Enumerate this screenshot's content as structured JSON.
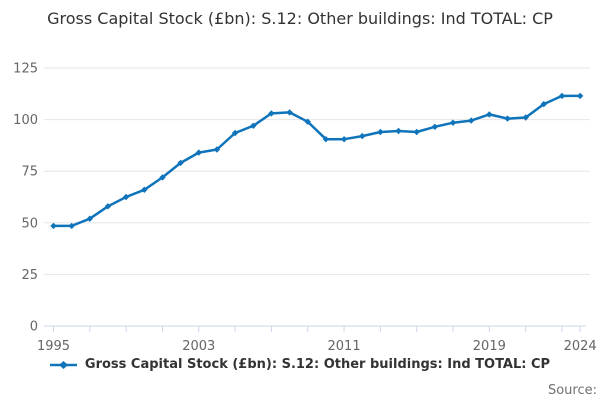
{
  "title": "Gross Capital Stock (£bn): S.12: Other buildings: Ind TOTAL: CP",
  "source_label": "Source:",
  "legend": {
    "label": "Gross Capital Stock (£bn): S.12: Other buildings: Ind TOTAL: CP"
  },
  "colors": {
    "line": "#1074bb",
    "grid": "#e6e6e6",
    "axis": "#ccd6eb",
    "tick_label": "#666666",
    "title_text": "#333333",
    "legend_text": "#333333",
    "source_text": "#707071"
  },
  "chart_data": {
    "type": "line",
    "title": "Gross Capital Stock (£bn): S.12: Other buildings: Ind TOTAL: CP",
    "xlabel": "",
    "ylabel": "",
    "x": [
      1995,
      1996,
      1997,
      1998,
      1999,
      2000,
      2001,
      2002,
      2003,
      2004,
      2005,
      2006,
      2007,
      2008,
      2009,
      2010,
      2011,
      2012,
      2013,
      2014,
      2015,
      2016,
      2017,
      2018,
      2019,
      2020,
      2021,
      2022,
      2023,
      2024
    ],
    "series": [
      {
        "name": "Gross Capital Stock (£bn): S.12: Other buildings: Ind TOTAL: CP",
        "values": [
          48.5,
          48.5,
          52,
          58,
          62.5,
          66,
          72,
          79,
          84,
          85.5,
          93.5,
          97,
          103,
          103.5,
          99,
          90.5,
          90.5,
          92,
          94,
          94.5,
          94,
          96.5,
          98.5,
          99.5,
          102.5,
          100.5,
          101,
          107.5,
          111.5,
          111.5
        ]
      }
    ],
    "ylim": [
      0,
      125
    ],
    "yticks": [
      0,
      25,
      50,
      75,
      100,
      125
    ],
    "xtick_labels": [
      1995,
      2003,
      2011,
      2019,
      2024
    ],
    "xtick_every": 2,
    "grid": "horizontal",
    "legend_position": "bottom",
    "marker": "diamond"
  }
}
